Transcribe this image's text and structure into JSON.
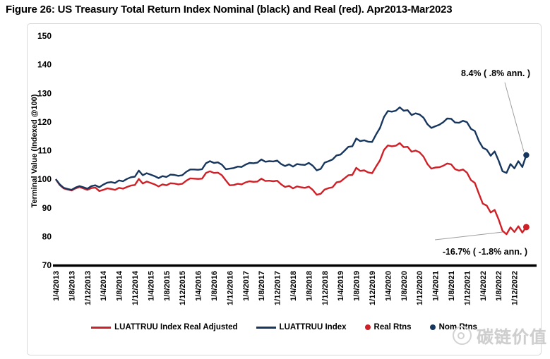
{
  "page": {
    "title": "Figure 26: US Treasury Total Return Index Nominal (black) and Real (red). Apr2013-Mar2023"
  },
  "colors": {
    "nominal": "#17365d",
    "real": "#d02027",
    "axis": "#000000",
    "leader_line": "#9e9e9e",
    "chart_border": "#d8d8d8",
    "watermark": "#cecece"
  },
  "chart_data": {
    "type": "line",
    "title": "Figure 26: US Treasury Total Return Index Nominal (black) and Real (red). Apr2013-Mar2023",
    "xlabel": "",
    "ylabel": "Terminal Value (Indexed @100)",
    "ylim": [
      70,
      150
    ],
    "y_ticks": [
      150,
      140,
      130,
      120,
      110,
      100,
      90,
      80,
      70
    ],
    "grid": false,
    "legend_position": "bottom",
    "x_tick_labels": [
      "1/4/2013",
      "1/8/2013",
      "1/12/2013",
      "1/4/2014",
      "1/8/2014",
      "1/12/2014",
      "1/4/2015",
      "1/8/2015",
      "1/12/2015",
      "1/4/2016",
      "1/8/2016",
      "1/12/2016",
      "1/4/2017",
      "1/8/2017",
      "1/12/2017",
      "1/4/2018",
      "1/8/2018",
      "1/12/2018",
      "1/4/2019",
      "1/8/2019",
      "1/12/2019",
      "1/4/2020",
      "1/8/2020",
      "1/12/2020",
      "1/4/2021",
      "1/8/2021",
      "1/12/2021",
      "1/4/2022",
      "1/8/2022",
      "1/12/2022"
    ],
    "x_months_span": 120,
    "x_ticks_every_months": 4,
    "series": [
      {
        "name": "LUATTRUU Index Real Adjusted",
        "color": "#d02027",
        "values": [
          100,
          98,
          96.8,
          96.4,
          96.1,
          96.8,
          97.3,
          96.8,
          96.3,
          96.9,
          97.1,
          95.9,
          96.3,
          96.8,
          96.6,
          96.3,
          97,
          96.7,
          97.3,
          97.8,
          98,
          100.1,
          98.5,
          99.2,
          98.7,
          98.2,
          97.5,
          98.2,
          97.9,
          98.6,
          98.5,
          98.2,
          98.4,
          99.5,
          100.3,
          100.2,
          100.1,
          100.2,
          102.2,
          102.8,
          102.2,
          102.3,
          101.4,
          99.6,
          97.9,
          98,
          98.4,
          98.2,
          98.9,
          99.3,
          99.1,
          99.2,
          100.2,
          99.4,
          99.5,
          99.3,
          99.5,
          98.2,
          97.3,
          97.7,
          96.8,
          97.5,
          97.2,
          97,
          97.4,
          96.3,
          94.6,
          94.9,
          96.4,
          96.9,
          97.2,
          98.9,
          99.2,
          100.3,
          101.4,
          101.5,
          104,
          102.9,
          103.1,
          102.4,
          102.1,
          104.4,
          106.6,
          110.2,
          111.8,
          111.5,
          111.7,
          112.6,
          111.2,
          111.3,
          109.6,
          110,
          109.4,
          107.9,
          105.3,
          103.7,
          104.1,
          104.2,
          104.7,
          105.5,
          105.2,
          103.5,
          103,
          103.4,
          102.3,
          99.7,
          98.7,
          95,
          91.5,
          90.8,
          88.4,
          89.3,
          86,
          82,
          80.8,
          83.2,
          81.6,
          83.6,
          81.4,
          83.3
        ]
      },
      {
        "name": "LUATTRUU Index",
        "color": "#17365d",
        "values": [
          100,
          98.2,
          97,
          96.6,
          96.3,
          97.1,
          97.6,
          97.2,
          96.7,
          97.6,
          97.9,
          97.2,
          98.1,
          98.8,
          99,
          98.7,
          99.6,
          99.3,
          100.1,
          100.7,
          100.9,
          103,
          101.4,
          102.1,
          101.6,
          101.1,
          100.4,
          101.1,
          100.8,
          101.6,
          101.5,
          101.2,
          101.4,
          102.6,
          103.4,
          103.4,
          103.3,
          103.5,
          105.6,
          106.3,
          105.7,
          105.9,
          105.1,
          103.5,
          103.7,
          103.9,
          104.4,
          104.3,
          105.1,
          105.7,
          105.6,
          105.8,
          106.9,
          106.1,
          106.3,
          106.2,
          106.5,
          105.3,
          104.6,
          105.2,
          104.4,
          105.3,
          105.1,
          105,
          105.7,
          104.7,
          103.1,
          103.6,
          105.8,
          106.3,
          106.9,
          108.3,
          108.6,
          109.9,
          111.3,
          111.5,
          114.2,
          113.3,
          113.6,
          113.1,
          113,
          115.6,
          117.9,
          121.7,
          123.8,
          123.6,
          123.9,
          125.1,
          123.9,
          124.1,
          122.4,
          123,
          122.6,
          121.5,
          119.2,
          117.9,
          118.5,
          119,
          119.9,
          121.2,
          121.1,
          119.8,
          119.7,
          120.4,
          119.9,
          117.6,
          116.8,
          113.4,
          111,
          110.3,
          108.2,
          109.7,
          106.5,
          102.8,
          102.2,
          105.3,
          103.8,
          106.3,
          104.3,
          108.4
        ]
      }
    ],
    "end_markers": [
      {
        "name": "Real Rtns",
        "color": "#d02027",
        "value": 83.3
      },
      {
        "name": "Nom Rtns",
        "color": "#17365d",
        "value": 108.4
      }
    ],
    "annotations": [
      {
        "id": "nominal_end",
        "text": "8.4% ( .8% ann. )"
      },
      {
        "id": "real_end",
        "text": "-16.7% ( -1.8% ann. )"
      }
    ]
  },
  "legend": {
    "items": [
      {
        "label": "LUATTRUU Index Real Adjusted",
        "color": "#d02027",
        "swatch": "line"
      },
      {
        "label": "LUATTRUU Index",
        "color": "#17365d",
        "swatch": "line"
      },
      {
        "label": "Real Rtns",
        "color": "#d02027",
        "swatch": "dot"
      },
      {
        "label": "Nom Rtns",
        "color": "#17365d",
        "swatch": "dot"
      }
    ]
  },
  "watermark": {
    "text": "碳链价值"
  }
}
